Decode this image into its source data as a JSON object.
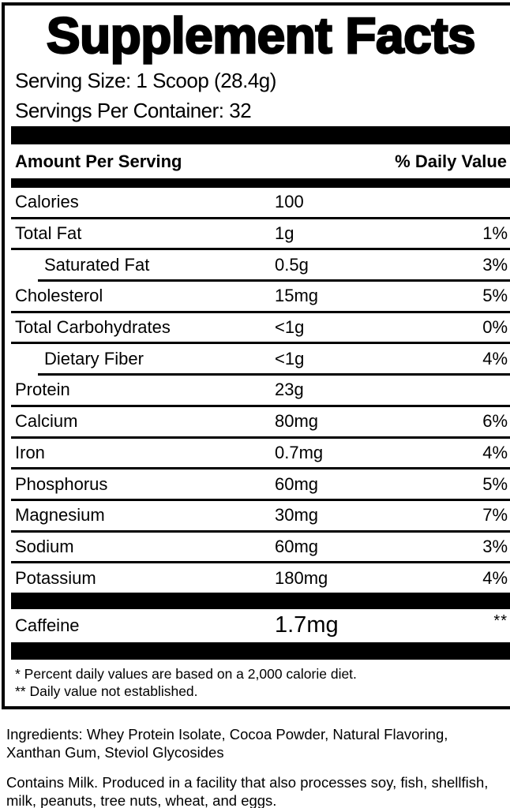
{
  "panel": {
    "title": "Supplement Facts",
    "serving_size": "Serving Size: 1 Scoop (28.4g)",
    "servings_per_container": "Servings Per Container: 32",
    "header": {
      "left": "Amount Per Serving",
      "right": "% Daily Value"
    },
    "rows": [
      {
        "label": "Calories",
        "amount": "100",
        "dv": "",
        "sub": false,
        "divider": "none"
      },
      {
        "label": "Total Fat",
        "amount": "1g",
        "dv": "1%",
        "sub": false,
        "divider": "full"
      },
      {
        "label": "Saturated Fat",
        "amount": "0.5g",
        "dv": "3%",
        "sub": true,
        "divider": "full"
      },
      {
        "label": "Cholesterol",
        "amount": "15mg",
        "dv": "5%",
        "sub": false,
        "divider": "indent"
      },
      {
        "label": "Total Carbohydrates",
        "amount": "<1g",
        "dv": "0%",
        "sub": false,
        "divider": "full"
      },
      {
        "label": "Dietary Fiber",
        "amount": "<1g",
        "dv": "4%",
        "sub": true,
        "divider": "full"
      },
      {
        "label": "Protein",
        "amount": "23g",
        "dv": "",
        "sub": false,
        "divider": "indent"
      },
      {
        "label": "Calcium",
        "amount": "80mg",
        "dv": "6%",
        "sub": false,
        "divider": "full"
      },
      {
        "label": "Iron",
        "amount": "0.7mg",
        "dv": "4%",
        "sub": false,
        "divider": "full"
      },
      {
        "label": "Phosphorus",
        "amount": "60mg",
        "dv": "5%",
        "sub": false,
        "divider": "full"
      },
      {
        "label": "Magnesium",
        "amount": "30mg",
        "dv": "7%",
        "sub": false,
        "divider": "full"
      },
      {
        "label": "Sodium",
        "amount": "60mg",
        "dv": "3%",
        "sub": false,
        "divider": "full"
      },
      {
        "label": "Potassium",
        "amount": "180mg",
        "dv": "4%",
        "sub": false,
        "divider": "full"
      }
    ],
    "caffeine": {
      "label": "Caffeine",
      "amount": "1.7mg",
      "dv": "**"
    },
    "footnotes": [
      "* Percent daily values are based on a 2,000 calorie diet.",
      "** Daily value not established."
    ]
  },
  "ingredients": {
    "lines": [
      "Ingredients: Whey Protein Isolate, Cocoa Powder, Natural Flavoring,",
      "Xanthan Gum, Steviol Glycosides"
    ]
  },
  "allergen": {
    "lines": [
      "Contains Milk. Produced in a facility that also processes soy, fish, shellfish,",
      "milk, peanuts, tree nuts, wheat, and eggs."
    ]
  },
  "colors": {
    "text": "#000000",
    "background": "#ffffff"
  }
}
